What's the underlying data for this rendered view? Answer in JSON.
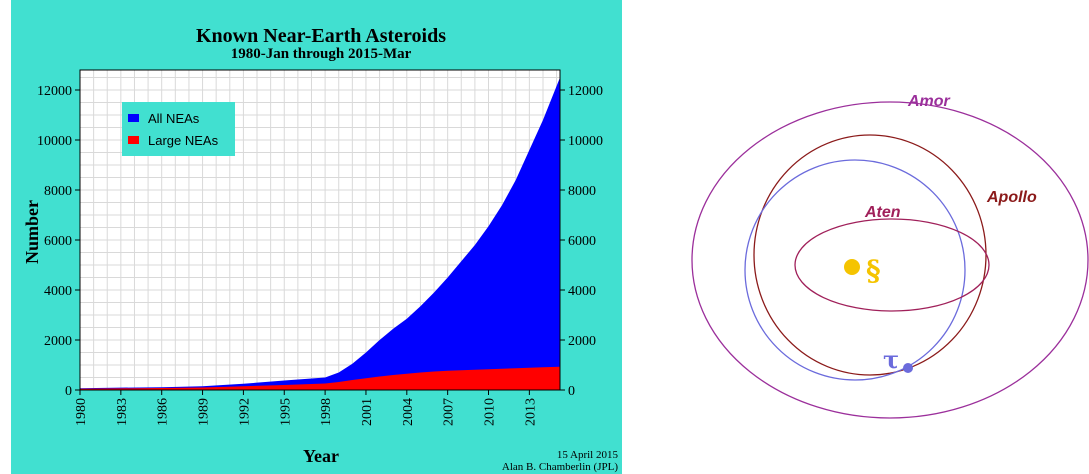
{
  "chart_data": {
    "type": "area",
    "title": "Known Near-Earth Asteroids",
    "subtitle": "1980-Jan through 2015-Mar",
    "xlabel": "Year",
    "ylabel": "Number",
    "xlim": [
      1980,
      2015.25
    ],
    "ylim": [
      0,
      12800
    ],
    "x_ticks": [
      "1980",
      "1983",
      "1986",
      "1989",
      "1992",
      "1995",
      "1998",
      "2001",
      "2004",
      "2007",
      "2010",
      "2013"
    ],
    "y_ticks": [
      "0",
      "2000",
      "4000",
      "6000",
      "8000",
      "10000",
      "12000"
    ],
    "grid": true,
    "legend_position": "top-left",
    "x": [
      1980,
      1983,
      1986,
      1989,
      1992,
      1995,
      1998,
      1999,
      2000,
      2001,
      2002,
      2003,
      2004,
      2005,
      2006,
      2007,
      2008,
      2009,
      2010,
      2011,
      2012,
      2013,
      2014,
      2015.25
    ],
    "series": [
      {
        "name": "All NEAs",
        "color": "#0000ff",
        "values": [
          70,
          95,
          110,
          150,
          250,
          380,
          500,
          700,
          1050,
          1500,
          2000,
          2450,
          2850,
          3350,
          3900,
          4500,
          5150,
          5800,
          6550,
          7400,
          8400,
          9600,
          10800,
          12500
        ]
      },
      {
        "name": "Large NEAs",
        "color": "#ff0000",
        "values": [
          50,
          65,
          80,
          100,
          150,
          200,
          260,
          320,
          400,
          470,
          540,
          600,
          650,
          700,
          740,
          770,
          790,
          810,
          830,
          850,
          870,
          890,
          910,
          930
        ]
      }
    ]
  },
  "credits": {
    "date": "15 April 2015",
    "author": "Alan B. Chamberlin (JPL)"
  },
  "orbit_diagram": {
    "labels": {
      "amor": "Amor",
      "apollo": "Apollo",
      "aten": "Aten"
    },
    "colors": {
      "amor": "#9b2f9b",
      "apollo": "#8b1a1a",
      "aten": "#a0205a",
      "earth_orbit": "#6b6bdc",
      "sun": "#f5c400"
    }
  }
}
